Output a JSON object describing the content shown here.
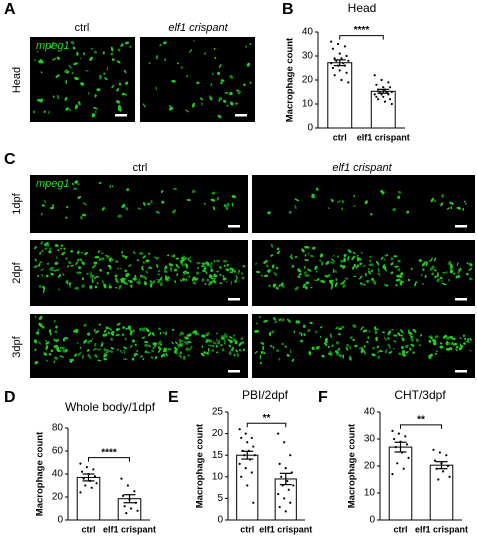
{
  "figure": {
    "panels": [
      "A",
      "B",
      "C",
      "D",
      "E",
      "F"
    ],
    "panel_a": {
      "columns": [
        "ctrl",
        "elf1 crispant"
      ],
      "marker": "mpeg1",
      "row": "Head"
    },
    "panel_c": {
      "columns": [
        "ctrl",
        "elf1 crispant"
      ],
      "marker": "mpeg1",
      "rows": [
        "1dpf",
        "2dpf",
        "3dpf"
      ]
    }
  },
  "chart_data": [
    {
      "type": "bar",
      "title": "Head",
      "y_label": "Macrophage count",
      "categories": [
        "ctrl",
        "elf1 crispant"
      ],
      "values": [
        27.2,
        15.3
      ],
      "errors": [
        1.2,
        0.8
      ],
      "annotation": "****",
      "color": "#ffffff",
      "points": [
        [
          36,
          35,
          34,
          33,
          31,
          30,
          29,
          29,
          28,
          28,
          27,
          27,
          26,
          26,
          25,
          24,
          23,
          22,
          20,
          19
        ],
        [
          22,
          20,
          19,
          18,
          17,
          17,
          16,
          16,
          15,
          15,
          15,
          14,
          14,
          14,
          13,
          13,
          12,
          12,
          11,
          10
        ]
      ],
      "ylim": [
        0,
        40
      ],
      "yticks": [
        0,
        10,
        20,
        30,
        40
      ]
    },
    {
      "type": "bar",
      "title": "Whole body/1dpf",
      "y_label": "Macrophage count",
      "categories": [
        "ctrl",
        "elf1 crispant"
      ],
      "values": [
        37,
        18.5
      ],
      "errors": [
        3,
        3.5
      ],
      "annotation": "****",
      "color": "#ffffff",
      "points": [
        [
          49,
          46,
          44,
          42,
          40,
          38,
          36,
          34,
          32,
          30,
          28,
          24
        ],
        [
          36,
          30,
          25,
          21,
          18,
          15,
          12,
          10,
          8,
          6
        ]
      ],
      "ylim": [
        0,
        80
      ],
      "yticks": [
        0,
        20,
        40,
        60,
        80
      ]
    },
    {
      "type": "bar",
      "title": "PBI/2dpf",
      "y_label": "Macrophage count",
      "categories": [
        "ctrl",
        "elf1 crispant"
      ],
      "values": [
        15,
        9.5
      ],
      "errors": [
        0.9,
        1.3
      ],
      "annotation": "**",
      "color": "#ffffff",
      "points": [
        [
          21,
          20,
          19,
          19,
          18,
          17,
          16,
          16,
          15,
          15,
          14,
          13,
          12,
          11,
          10,
          8,
          4
        ],
        [
          20,
          18,
          15,
          13,
          12,
          11,
          10,
          9,
          8,
          8,
          7,
          6,
          5,
          4,
          3,
          2
        ]
      ],
      "ylim": [
        0,
        25
      ],
      "yticks": [
        0,
        5,
        10,
        15,
        20,
        25
      ]
    },
    {
      "type": "bar",
      "title": "CHT/3dpf",
      "y_label": "Macrophage count",
      "categories": [
        "ctrl",
        "elf1 crispant"
      ],
      "values": [
        27,
        20.3
      ],
      "errors": [
        1.8,
        1.3
      ],
      "annotation": "**",
      "color": "#ffffff",
      "points": [
        [
          33,
          32,
          31,
          30,
          29,
          28,
          27,
          25,
          23,
          21,
          19,
          17
        ],
        [
          26,
          25,
          24,
          22,
          21,
          20,
          19,
          18,
          16,
          15
        ]
      ],
      "ylim": [
        0,
        40
      ],
      "yticks": [
        0,
        10,
        20,
        30,
        40
      ]
    }
  ]
}
